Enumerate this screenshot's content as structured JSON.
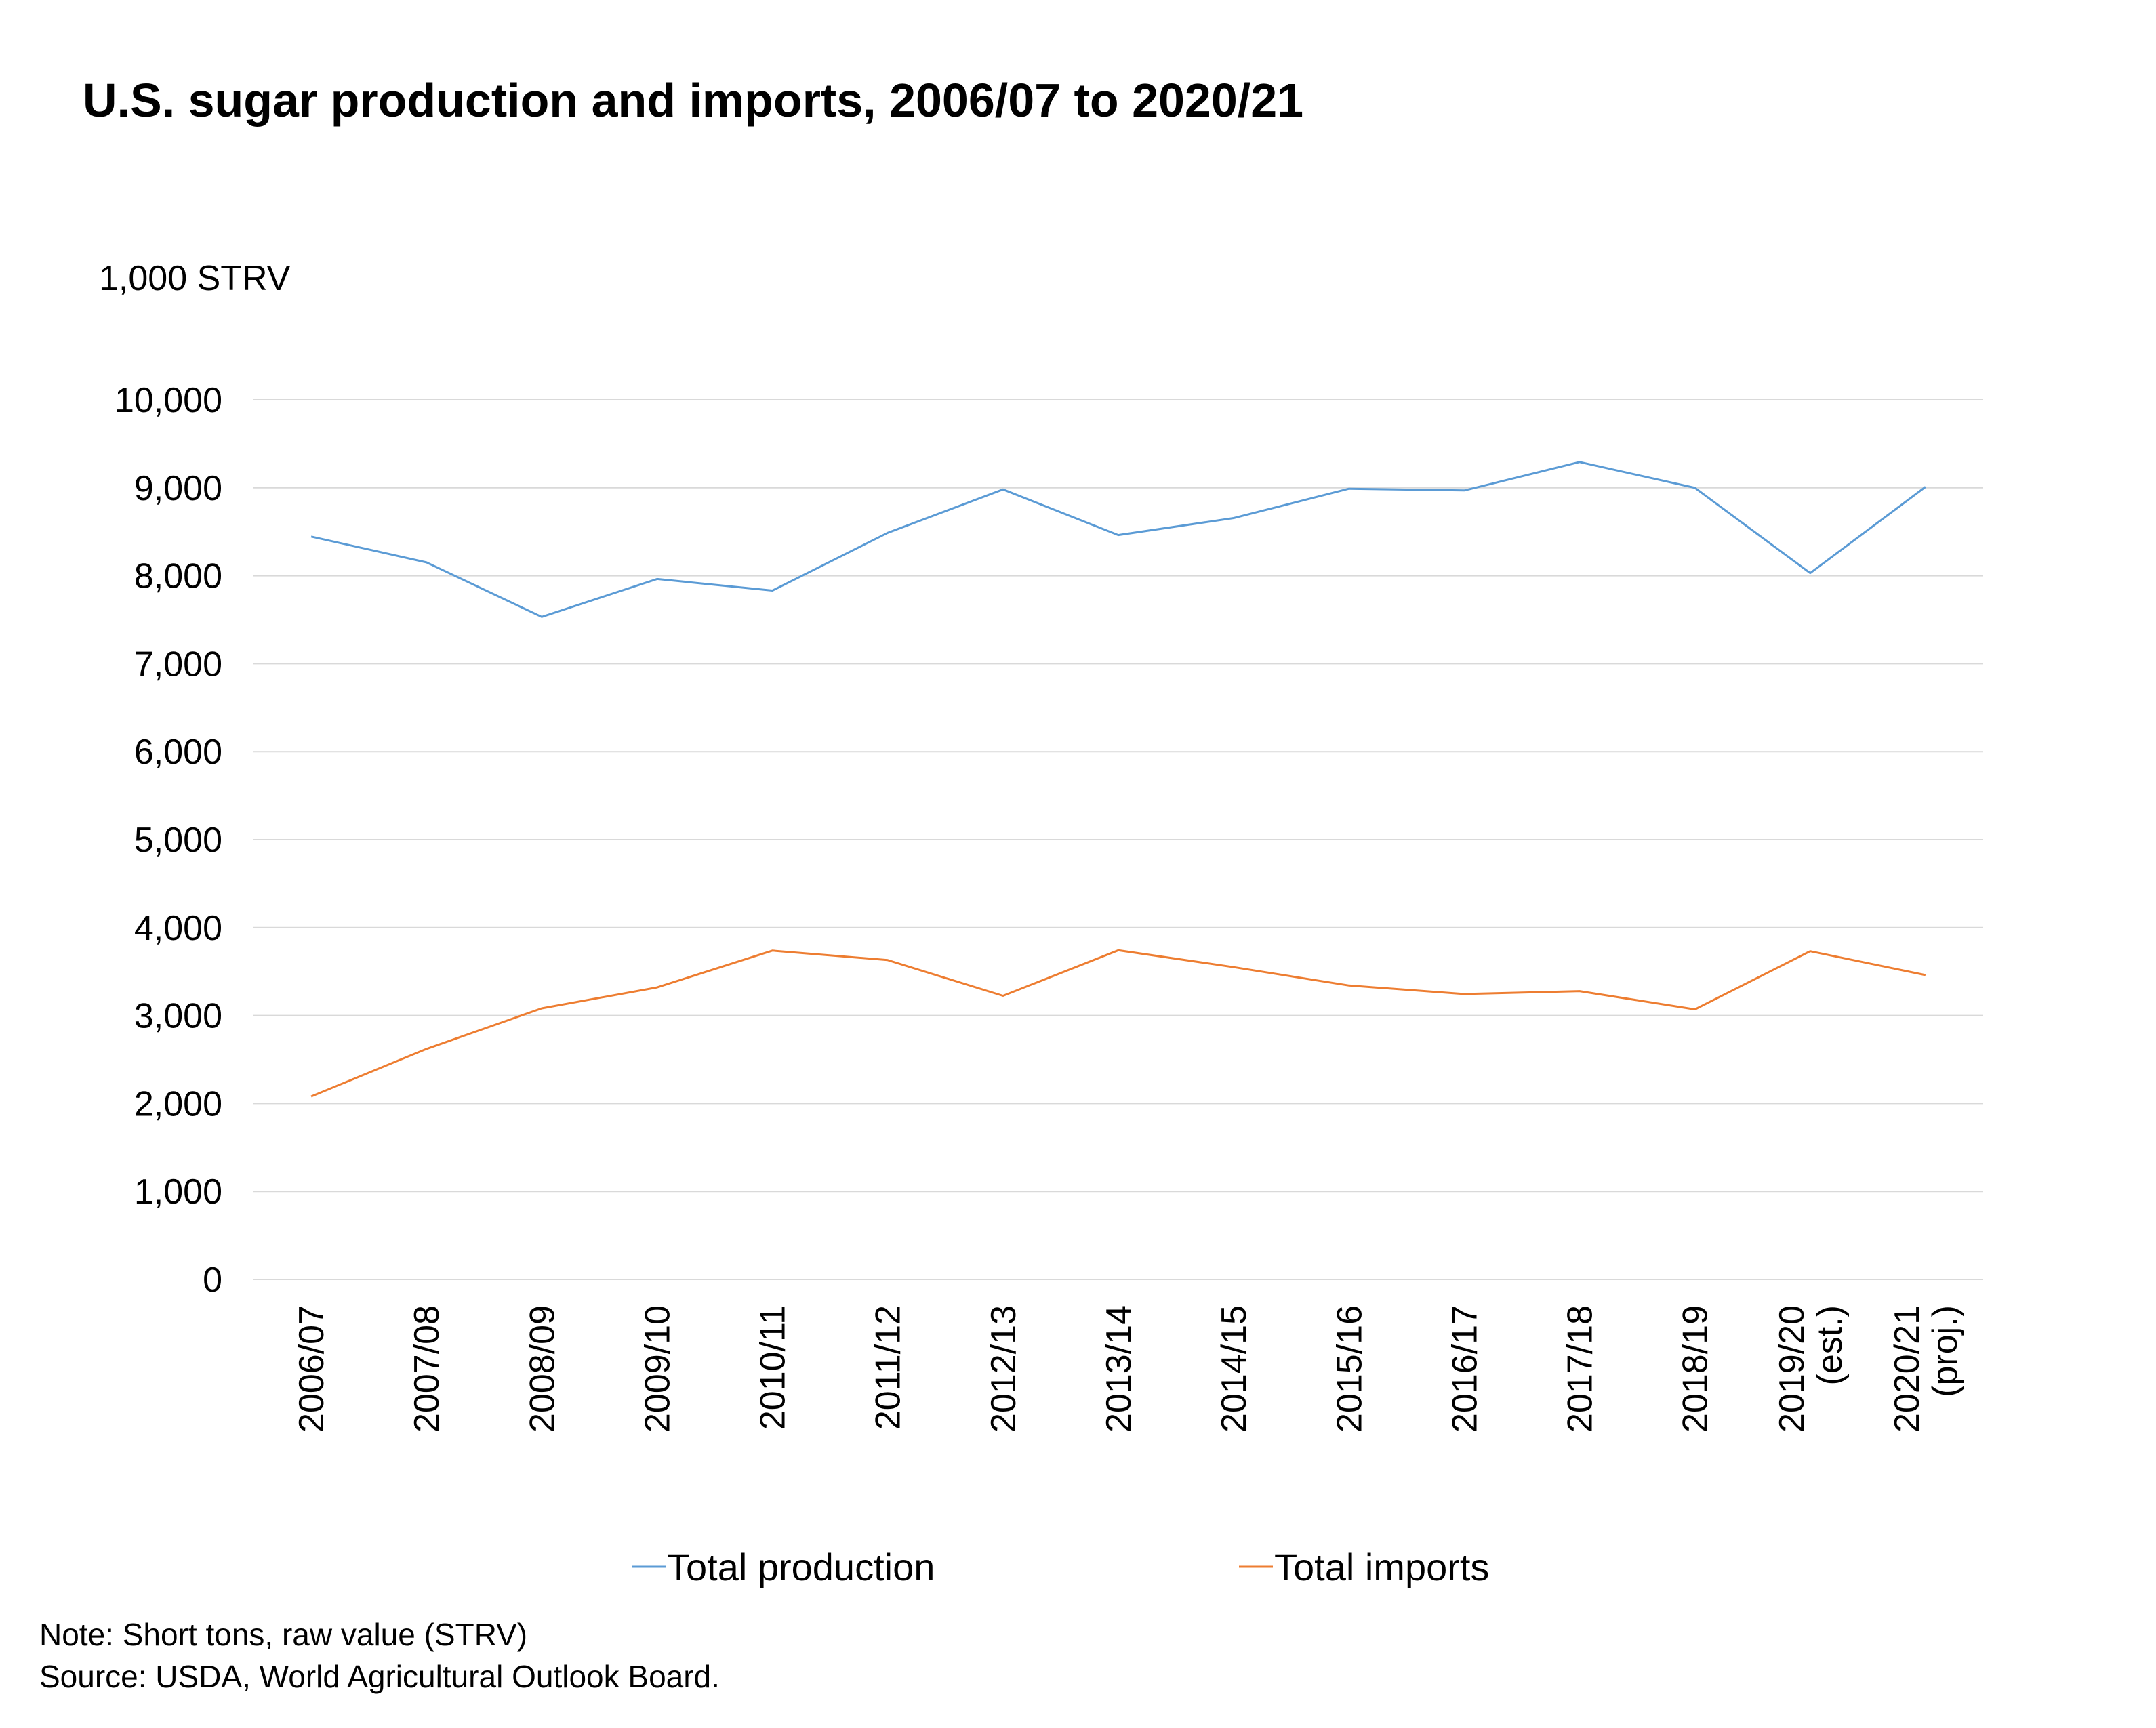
{
  "chart_data": {
    "type": "line",
    "title": "U.S. sugar production and imports, 2006/07 to 2020/21",
    "ylabel": "1,000 STRV",
    "xlabel": "",
    "ylim": [
      0,
      10000
    ],
    "ytick_values": [
      0,
      1000,
      2000,
      3000,
      4000,
      5000,
      6000,
      7000,
      8000,
      9000,
      10000
    ],
    "ytick_labels": [
      "0",
      "1,000",
      "2,000",
      "3,000",
      "4,000",
      "5,000",
      "6,000",
      "7,000",
      "8,000",
      "9,000",
      "10,000"
    ],
    "categories": [
      "2006/07",
      "2007/08",
      "2008/09",
      "2009/10",
      "2010/11",
      "2011/12",
      "2012/13",
      "2013/14",
      "2014/15",
      "2015/16",
      "2016/17",
      "2017/18",
      "2018/19",
      "2019/20 (est.)",
      "2020/21 (proj.)"
    ],
    "category_lines": [
      [
        "2006/07"
      ],
      [
        "2007/08"
      ],
      [
        "2008/09"
      ],
      [
        "2009/10"
      ],
      [
        "2010/11"
      ],
      [
        "2011/12"
      ],
      [
        "2012/13"
      ],
      [
        "2013/14"
      ],
      [
        "2014/15"
      ],
      [
        "2015/16"
      ],
      [
        "2016/17"
      ],
      [
        "2017/18"
      ],
      [
        "2018/19"
      ],
      [
        "2019/20",
        "(est.)"
      ],
      [
        "2020/21",
        "(proj.)"
      ]
    ],
    "series": [
      {
        "name": "Total production",
        "color": "#5b9bd5",
        "values": [
          8445,
          8152,
          7532,
          7963,
          7831,
          8488,
          8981,
          8462,
          8656,
          8989,
          8969,
          9293,
          8999,
          8030,
          9010
        ]
      },
      {
        "name": "Total imports",
        "color": "#ed7d31",
        "values": [
          2080,
          2620,
          3082,
          3320,
          3738,
          3630,
          3224,
          3742,
          3550,
          3341,
          3244,
          3277,
          3070,
          3731,
          3460
        ]
      }
    ],
    "grid": true,
    "legend_position": "bottom-center"
  },
  "notes": {
    "line1": "Note: Short tons, raw value (STRV)",
    "line2": "Source: USDA, World Agricultural Outlook Board."
  }
}
